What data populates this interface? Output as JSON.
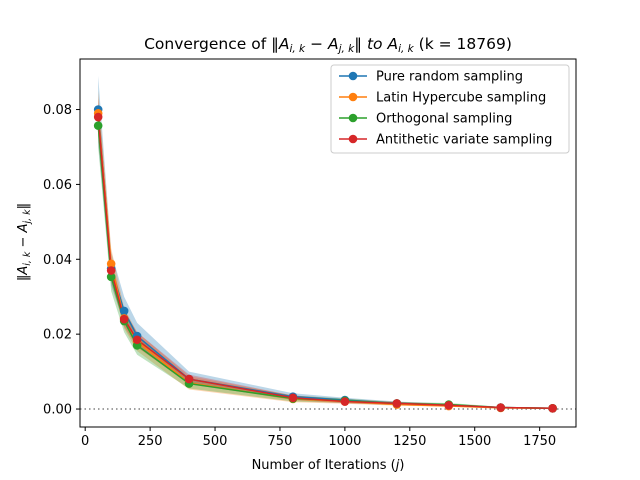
{
  "chart_data": {
    "type": "line",
    "title_parts": {
      "prefix": "Convergence of ",
      "norm_expr": "‖A",
      "sub1": "i, k",
      "minus": " − A",
      "sub2": "j, k",
      "norm_close": "‖",
      "to": " to A",
      "sub3": "i, k",
      "k_expr": " (k = 18769)"
    },
    "xlabel": {
      "text": "Number of Iterations (",
      "var": "j",
      "close": ")"
    },
    "ylabel": {
      "open": "‖A",
      "sub1": "i, k",
      "mid": " − A",
      "sub2": "j, k",
      "close": "‖"
    },
    "xlim": [
      -20,
      1890
    ],
    "ylim": [
      -0.0048,
      0.0935
    ],
    "x_ticks": [
      0,
      250,
      500,
      750,
      1000,
      1250,
      1500,
      1750
    ],
    "x_tick_labels": [
      "0",
      "250",
      "500",
      "750",
      "1000",
      "1250",
      "1500",
      "1750"
    ],
    "y_ticks": [
      0.0,
      0.02,
      0.04,
      0.06,
      0.08
    ],
    "y_tick_labels": [
      "0.00",
      "0.02",
      "0.04",
      "0.06",
      "0.08"
    ],
    "reference_line_y": 0.0,
    "legend_position": "upper-right",
    "grid": false,
    "x": [
      50,
      100,
      150,
      200,
      400,
      800,
      1000,
      1200,
      1400,
      1600,
      1800
    ],
    "series": [
      {
        "name": "Pure random sampling",
        "color": "#1f77b4",
        "values": [
          0.08,
          0.0375,
          0.0262,
          0.0195,
          0.008,
          0.0033,
          0.0024,
          0.0015,
          0.001,
          0.0004,
          0.0002
        ],
        "band_lower": [
          0.071,
          0.033,
          0.023,
          0.0168,
          0.0066,
          0.0026,
          0.0019,
          0.0012,
          0.0008,
          0.0003,
          0.0001
        ],
        "band_upper": [
          0.089,
          0.042,
          0.03,
          0.023,
          0.01,
          0.0042,
          0.003,
          0.002,
          0.0014,
          0.0006,
          0.0003
        ]
      },
      {
        "name": "Latin Hypercube sampling",
        "color": "#ff7f0e",
        "values": [
          0.079,
          0.0388,
          0.0242,
          0.018,
          0.007,
          0.0027,
          0.002,
          0.0012,
          0.0008,
          0.0003,
          0.0002
        ],
        "band_lower": [
          0.073,
          0.035,
          0.0215,
          0.0155,
          0.0052,
          0.0018,
          0.0014,
          0.0009,
          0.0006,
          0.0002,
          0.0001
        ],
        "band_upper": [
          0.085,
          0.043,
          0.027,
          0.0205,
          0.0088,
          0.0036,
          0.0027,
          0.0017,
          0.0012,
          0.0005,
          0.0003
        ]
      },
      {
        "name": "Orthogonal sampling",
        "color": "#2ca02c",
        "values": [
          0.0757,
          0.0353,
          0.0235,
          0.017,
          0.0068,
          0.0028,
          0.0022,
          0.0015,
          0.0012,
          0.0004,
          0.0002
        ],
        "band_lower": [
          0.07,
          0.0315,
          0.0205,
          0.0145,
          0.0055,
          0.002,
          0.0016,
          0.001,
          0.0008,
          0.0003,
          0.0001
        ],
        "band_upper": [
          0.0815,
          0.039,
          0.0265,
          0.0195,
          0.0082,
          0.0036,
          0.0028,
          0.0019,
          0.0016,
          0.0006,
          0.0003
        ]
      },
      {
        "name": "Antithetic variate sampling",
        "color": "#d62728",
        "values": [
          0.078,
          0.037,
          0.024,
          0.0185,
          0.008,
          0.003,
          0.002,
          0.0015,
          0.001,
          0.0004,
          0.0002
        ],
        "band_lower": [
          0.073,
          0.034,
          0.022,
          0.0165,
          0.0068,
          0.0024,
          0.0015,
          0.0011,
          0.0008,
          0.0003,
          0.0001
        ],
        "band_upper": [
          0.083,
          0.04,
          0.0262,
          0.0205,
          0.0092,
          0.0036,
          0.0025,
          0.0019,
          0.0013,
          0.0005,
          0.0003
        ]
      }
    ]
  }
}
